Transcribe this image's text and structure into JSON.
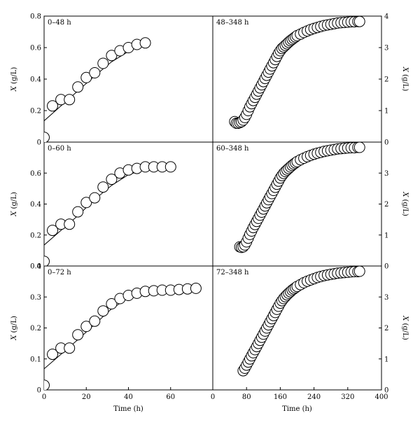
{
  "chart_data": {
    "type": "scatter",
    "y_label_left": {
      "var": "X",
      "unit": "(g/L)"
    },
    "y_label_right": {
      "var": "X",
      "unit": "(g/L)"
    },
    "xlabel": "Time (h)",
    "panels": [
      {
        "label": "0–48 h",
        "side": "left",
        "row": 0,
        "xlim": [
          0,
          80
        ],
        "ylim": [
          0,
          0.8
        ],
        "yticks": [
          0,
          0.2,
          0.4,
          0.6,
          0.8
        ],
        "ytick_labels": [
          "0",
          "0.2",
          "0.4",
          "0.6",
          "0.8"
        ],
        "xticks": [],
        "xtick_labels": [],
        "points": [
          [
            0,
            0.03
          ],
          [
            4,
            0.23
          ],
          [
            8,
            0.27
          ],
          [
            12,
            0.27
          ],
          [
            16,
            0.35
          ],
          [
            20,
            0.41
          ],
          [
            24,
            0.44
          ],
          [
            28,
            0.5
          ],
          [
            32,
            0.55
          ],
          [
            36,
            0.58
          ],
          [
            40,
            0.6
          ],
          [
            44,
            0.62
          ],
          [
            48,
            0.63
          ]
        ],
        "fit": [
          [
            0,
            0.135
          ],
          [
            8,
            0.23
          ],
          [
            16,
            0.325
          ],
          [
            24,
            0.42
          ],
          [
            32,
            0.51
          ],
          [
            40,
            0.575
          ],
          [
            48,
            0.625
          ]
        ]
      },
      {
        "label": "48–348 h",
        "side": "right",
        "row": 0,
        "xlim": [
          0,
          400
        ],
        "ylim": [
          0,
          4
        ],
        "yticks": [
          0,
          1,
          2,
          3,
          4
        ],
        "ytick_labels": [
          "0",
          "1",
          "2",
          "3",
          "4"
        ],
        "xticks": [],
        "xtick_labels": [],
        "points": [
          [
            52,
            0.65
          ],
          [
            56,
            0.6
          ],
          [
            60,
            0.6
          ],
          [
            64,
            0.62
          ],
          [
            68,
            0.65
          ],
          [
            72,
            0.7
          ],
          [
            76,
            0.78
          ],
          [
            80,
            0.88
          ],
          [
            84,
            1.0
          ],
          [
            88,
            1.12
          ],
          [
            92,
            1.22
          ],
          [
            96,
            1.32
          ],
          [
            100,
            1.42
          ],
          [
            104,
            1.52
          ],
          [
            108,
            1.62
          ],
          [
            112,
            1.72
          ],
          [
            116,
            1.82
          ],
          [
            120,
            1.92
          ],
          [
            124,
            2.02
          ],
          [
            128,
            2.12
          ],
          [
            132,
            2.22
          ],
          [
            136,
            2.32
          ],
          [
            140,
            2.42
          ],
          [
            144,
            2.52
          ],
          [
            148,
            2.62
          ],
          [
            152,
            2.72
          ],
          [
            156,
            2.82
          ],
          [
            160,
            2.9
          ],
          [
            164,
            2.97
          ],
          [
            168,
            3.02
          ],
          [
            172,
            3.07
          ],
          [
            176,
            3.12
          ],
          [
            180,
            3.17
          ],
          [
            184,
            3.22
          ],
          [
            188,
            3.26
          ],
          [
            192,
            3.3
          ],
          [
            196,
            3.34
          ],
          [
            200,
            3.38
          ],
          [
            208,
            3.43
          ],
          [
            216,
            3.48
          ],
          [
            224,
            3.53
          ],
          [
            232,
            3.57
          ],
          [
            240,
            3.61
          ],
          [
            248,
            3.64
          ],
          [
            256,
            3.67
          ],
          [
            264,
            3.7
          ],
          [
            272,
            3.72
          ],
          [
            280,
            3.74
          ],
          [
            288,
            3.76
          ],
          [
            296,
            3.78
          ],
          [
            304,
            3.79
          ],
          [
            312,
            3.8
          ],
          [
            320,
            3.81
          ],
          [
            328,
            3.82
          ],
          [
            336,
            3.82
          ],
          [
            344,
            3.83
          ],
          [
            348,
            3.83
          ]
        ],
        "fit": [
          [
            56,
            0.65
          ],
          [
            70,
            0.72
          ],
          [
            90,
            1.15
          ],
          [
            120,
            1.92
          ],
          [
            150,
            2.65
          ],
          [
            180,
            3.15
          ],
          [
            210,
            3.45
          ],
          [
            240,
            3.61
          ],
          [
            280,
            3.74
          ],
          [
            320,
            3.8
          ],
          [
            348,
            3.83
          ]
        ]
      },
      {
        "label": "0–60 h",
        "side": "left",
        "row": 1,
        "xlim": [
          0,
          80
        ],
        "ylim": [
          0,
          0.8
        ],
        "yticks": [
          0,
          0.2,
          0.4,
          0.6
        ],
        "ytick_labels": [
          "0",
          "0.2",
          "0.4",
          "0.6"
        ],
        "xticks": [],
        "xtick_labels": [],
        "points": [
          [
            0,
            0.03
          ],
          [
            4,
            0.23
          ],
          [
            8,
            0.27
          ],
          [
            12,
            0.27
          ],
          [
            16,
            0.35
          ],
          [
            20,
            0.41
          ],
          [
            24,
            0.44
          ],
          [
            28,
            0.51
          ],
          [
            32,
            0.56
          ],
          [
            36,
            0.6
          ],
          [
            40,
            0.62
          ],
          [
            44,
            0.63
          ],
          [
            48,
            0.64
          ],
          [
            52,
            0.64
          ],
          [
            56,
            0.64
          ],
          [
            60,
            0.64
          ]
        ],
        "fit": [
          [
            0,
            0.135
          ],
          [
            8,
            0.23
          ],
          [
            16,
            0.325
          ],
          [
            24,
            0.43
          ],
          [
            32,
            0.52
          ],
          [
            40,
            0.59
          ],
          [
            48,
            0.625
          ],
          [
            56,
            0.64
          ],
          [
            60,
            0.645
          ]
        ]
      },
      {
        "label": "60–348 h",
        "side": "right",
        "row": 1,
        "xlim": [
          0,
          400
        ],
        "ylim": [
          0,
          4
        ],
        "yticks": [
          0,
          1,
          2,
          3
        ],
        "ytick_labels": [
          "0",
          "1",
          "2",
          "3"
        ],
        "xticks": [],
        "xtick_labels": [],
        "points": [
          [
            64,
            0.62
          ],
          [
            68,
            0.6
          ],
          [
            72,
            0.62
          ],
          [
            76,
            0.68
          ],
          [
            80,
            0.78
          ],
          [
            84,
            0.9
          ],
          [
            88,
            1.02
          ],
          [
            92,
            1.13
          ],
          [
            96,
            1.24
          ],
          [
            100,
            1.34
          ],
          [
            104,
            1.44
          ],
          [
            108,
            1.54
          ],
          [
            112,
            1.64
          ],
          [
            116,
            1.74
          ],
          [
            120,
            1.84
          ],
          [
            124,
            1.94
          ],
          [
            128,
            2.04
          ],
          [
            132,
            2.14
          ],
          [
            136,
            2.24
          ],
          [
            140,
            2.34
          ],
          [
            144,
            2.44
          ],
          [
            148,
            2.54
          ],
          [
            152,
            2.64
          ],
          [
            156,
            2.74
          ],
          [
            160,
            2.84
          ],
          [
            164,
            2.92
          ],
          [
            168,
            2.99
          ],
          [
            172,
            3.05
          ],
          [
            176,
            3.1
          ],
          [
            180,
            3.15
          ],
          [
            184,
            3.2
          ],
          [
            188,
            3.25
          ],
          [
            192,
            3.29
          ],
          [
            196,
            3.33
          ],
          [
            200,
            3.37
          ],
          [
            208,
            3.43
          ],
          [
            216,
            3.48
          ],
          [
            224,
            3.53
          ],
          [
            232,
            3.57
          ],
          [
            240,
            3.61
          ],
          [
            248,
            3.64
          ],
          [
            256,
            3.67
          ],
          [
            264,
            3.7
          ],
          [
            272,
            3.72
          ],
          [
            280,
            3.74
          ],
          [
            288,
            3.76
          ],
          [
            296,
            3.78
          ],
          [
            304,
            3.79
          ],
          [
            312,
            3.8
          ],
          [
            320,
            3.81
          ],
          [
            328,
            3.82
          ],
          [
            336,
            3.82
          ],
          [
            344,
            3.83
          ],
          [
            348,
            3.83
          ]
        ],
        "fit": [
          [
            66,
            0.62
          ],
          [
            80,
            0.78
          ],
          [
            100,
            1.34
          ],
          [
            130,
            2.09
          ],
          [
            160,
            2.84
          ],
          [
            190,
            3.27
          ],
          [
            220,
            3.5
          ],
          [
            260,
            3.68
          ],
          [
            300,
            3.78
          ],
          [
            348,
            3.83
          ]
        ]
      },
      {
        "label": "0–72 h",
        "side": "left",
        "row": 2,
        "xlim": [
          0,
          80
        ],
        "ylim": [
          0,
          0.4
        ],
        "yticks": [
          0,
          0.1,
          0.2,
          0.3,
          0.4
        ],
        "ytick_labels": [
          "0",
          "0.1",
          "0.2",
          "0.3",
          "0.4"
        ],
        "xticks": [
          0,
          20,
          40,
          60
        ],
        "xtick_labels": [
          "0",
          "20",
          "40",
          "60"
        ],
        "points": [
          [
            0,
            0.015
          ],
          [
            4,
            0.115
          ],
          [
            8,
            0.135
          ],
          [
            12,
            0.135
          ],
          [
            16,
            0.178
          ],
          [
            20,
            0.205
          ],
          [
            24,
            0.222
          ],
          [
            28,
            0.255
          ],
          [
            32,
            0.278
          ],
          [
            36,
            0.295
          ],
          [
            40,
            0.305
          ],
          [
            44,
            0.312
          ],
          [
            48,
            0.318
          ],
          [
            52,
            0.32
          ],
          [
            56,
            0.322
          ],
          [
            60,
            0.322
          ],
          [
            64,
            0.324
          ],
          [
            68,
            0.326
          ],
          [
            72,
            0.328
          ]
        ],
        "fit": [
          [
            0,
            0.068
          ],
          [
            8,
            0.115
          ],
          [
            16,
            0.162
          ],
          [
            24,
            0.212
          ],
          [
            32,
            0.262
          ],
          [
            40,
            0.297
          ],
          [
            48,
            0.315
          ],
          [
            56,
            0.322
          ],
          [
            64,
            0.325
          ],
          [
            72,
            0.327
          ]
        ]
      },
      {
        "label": "72–348 h",
        "side": "right",
        "row": 2,
        "xlim": [
          0,
          400
        ],
        "ylim": [
          0,
          4
        ],
        "yticks": [
          0,
          1,
          2,
          3
        ],
        "ytick_labels": [
          "0",
          "1",
          "2",
          "3"
        ],
        "xticks": [
          0,
          80,
          160,
          240,
          320,
          400
        ],
        "xtick_labels": [
          "0",
          "80",
          "160",
          "240",
          "320",
          "400"
        ],
        "points": [
          [
            72,
            0.62
          ],
          [
            76,
            0.7
          ],
          [
            80,
            0.8
          ],
          [
            84,
            0.9
          ],
          [
            88,
            1.0
          ],
          [
            92,
            1.1
          ],
          [
            96,
            1.2
          ],
          [
            100,
            1.3
          ],
          [
            104,
            1.4
          ],
          [
            108,
            1.5
          ],
          [
            112,
            1.6
          ],
          [
            116,
            1.7
          ],
          [
            120,
            1.8
          ],
          [
            124,
            1.9
          ],
          [
            128,
            2.0
          ],
          [
            132,
            2.1
          ],
          [
            136,
            2.2
          ],
          [
            140,
            2.3
          ],
          [
            144,
            2.4
          ],
          [
            148,
            2.5
          ],
          [
            152,
            2.6
          ],
          [
            156,
            2.7
          ],
          [
            160,
            2.8
          ],
          [
            164,
            2.88
          ],
          [
            168,
            2.95
          ],
          [
            172,
            3.01
          ],
          [
            176,
            3.07
          ],
          [
            180,
            3.12
          ],
          [
            184,
            3.17
          ],
          [
            188,
            3.22
          ],
          [
            192,
            3.26
          ],
          [
            196,
            3.3
          ],
          [
            200,
            3.34
          ],
          [
            208,
            3.4
          ],
          [
            216,
            3.46
          ],
          [
            224,
            3.51
          ],
          [
            232,
            3.55
          ],
          [
            240,
            3.59
          ],
          [
            248,
            3.63
          ],
          [
            256,
            3.66
          ],
          [
            264,
            3.69
          ],
          [
            272,
            3.71
          ],
          [
            280,
            3.73
          ],
          [
            288,
            3.75
          ],
          [
            296,
            3.77
          ],
          [
            304,
            3.78
          ],
          [
            312,
            3.79
          ],
          [
            320,
            3.8
          ],
          [
            328,
            3.81
          ],
          [
            336,
            3.82
          ],
          [
            344,
            3.82
          ],
          [
            348,
            3.83
          ]
        ],
        "fit": [
          [
            72,
            0.62
          ],
          [
            100,
            1.3
          ],
          [
            130,
            2.05
          ],
          [
            160,
            2.8
          ],
          [
            190,
            3.24
          ],
          [
            220,
            3.49
          ],
          [
            260,
            3.68
          ],
          [
            300,
            3.78
          ],
          [
            348,
            3.83
          ]
        ]
      }
    ]
  }
}
